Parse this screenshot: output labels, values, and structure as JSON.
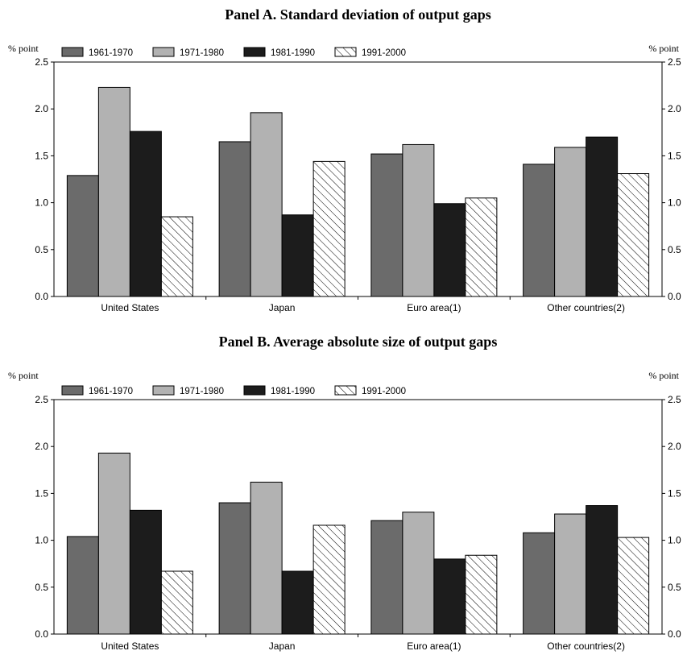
{
  "colors": {
    "1961-1970": "#6b6b6b",
    "1971-1980": "#b2b2b2",
    "1981-1990": "#1c1c1c",
    "1991-2000": "hatch"
  },
  "chart_data": [
    {
      "type": "bar",
      "title": "Panel A. Standard deviation of output gaps",
      "ylabel_left": "% point",
      "ylabel_right": "% point",
      "ylim": [
        0,
        2.5
      ],
      "yticks": [
        "0.0",
        "0.5",
        "1.0",
        "1.5",
        "2.0",
        "2.5"
      ],
      "categories": [
        "United States",
        "Japan",
        "Euro area(1)",
        "Other countries(2)"
      ],
      "series": [
        {
          "name": "1961-1970",
          "values": [
            1.29,
            1.65,
            1.52,
            1.41
          ]
        },
        {
          "name": "1971-1980",
          "values": [
            2.23,
            1.96,
            1.62,
            1.59
          ]
        },
        {
          "name": "1981-1990",
          "values": [
            1.76,
            0.87,
            0.99,
            1.7
          ]
        },
        {
          "name": "1991-2000",
          "values": [
            0.85,
            1.44,
            1.05,
            1.31
          ]
        }
      ],
      "legend": "top-left",
      "grid": false
    },
    {
      "type": "bar",
      "title": "Panel B. Average absolute size of output gaps",
      "ylabel_left": "% point",
      "ylabel_right": "% point",
      "ylim": [
        0,
        2.5
      ],
      "yticks": [
        "0.0",
        "0.5",
        "1.0",
        "1.5",
        "2.0",
        "2.5"
      ],
      "categories": [
        "United States",
        "Japan",
        "Euro area(1)",
        "Other countries(2)"
      ],
      "series": [
        {
          "name": "1961-1970",
          "values": [
            1.04,
            1.4,
            1.21,
            1.08
          ]
        },
        {
          "name": "1971-1980",
          "values": [
            1.93,
            1.62,
            1.3,
            1.28
          ]
        },
        {
          "name": "1981-1990",
          "values": [
            1.32,
            0.67,
            0.8,
            1.37
          ]
        },
        {
          "name": "1991-2000",
          "values": [
            0.67,
            1.16,
            0.84,
            1.03
          ]
        }
      ],
      "legend": "top-left",
      "grid": false
    }
  ]
}
